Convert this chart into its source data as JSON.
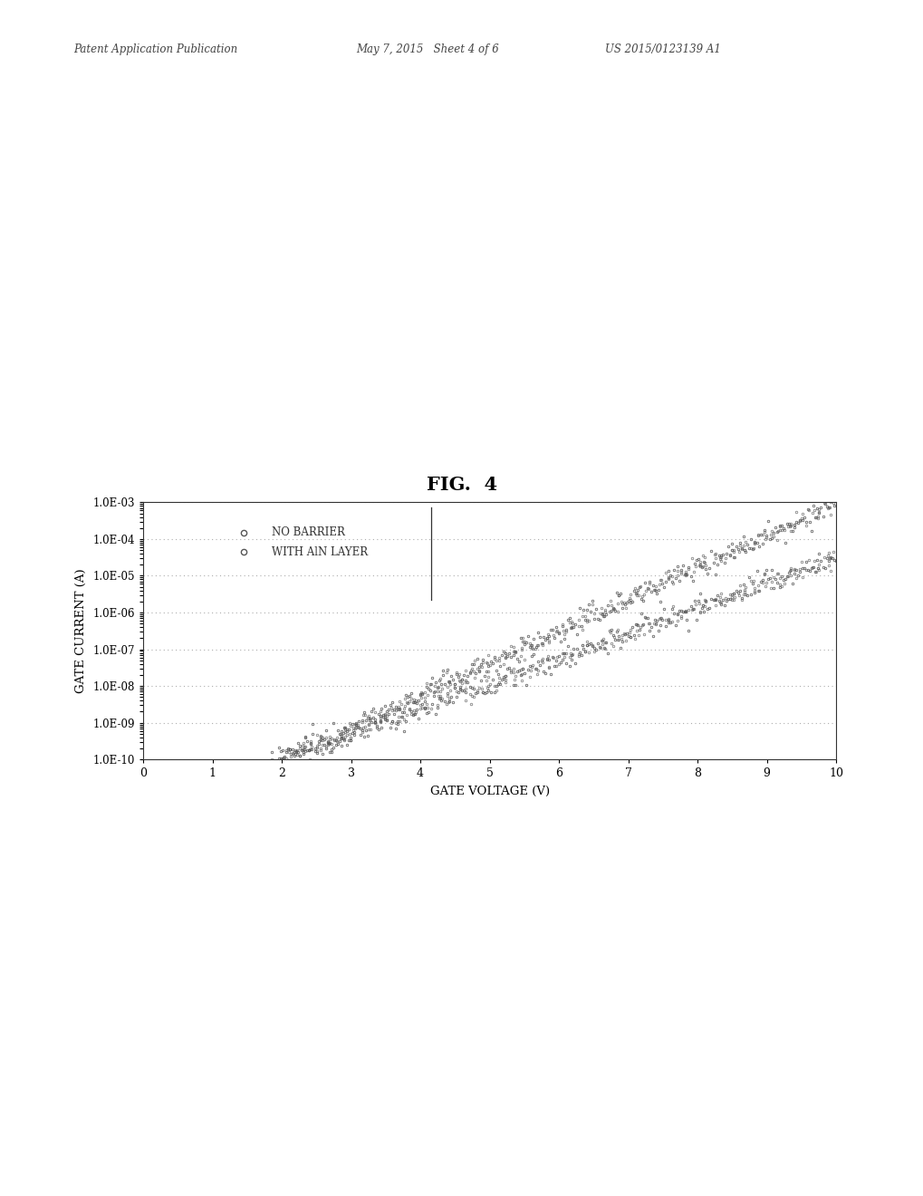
{
  "title": "FIG.  4",
  "xlabel": "GATE VOLTAGE (V)",
  "ylabel": "GATE CURRENT (A)",
  "header_left": "Patent Application Publication",
  "header_mid": "May 7, 2015   Sheet 4 of 6",
  "header_right": "US 2015/0123139 A1",
  "legend_labels": [
    "NO BARRIER",
    "WITH AlN LAYER"
  ],
  "xlim": [
    0,
    10
  ],
  "x_ticks": [
    0,
    1,
    2,
    3,
    4,
    5,
    6,
    7,
    8,
    9,
    10
  ],
  "y_tick_labels": [
    "1.0E-03",
    "1.0E-04",
    "1.0E-05",
    "1.0E-06",
    "1.0E-07",
    "1.0E-08",
    "1.0E-09",
    "1.0E-10"
  ],
  "y_tick_values": [
    0.001,
    0.0001,
    1e-05,
    1e-06,
    1e-07,
    1e-08,
    1e-09,
    1e-10
  ],
  "background_color": "#ffffff",
  "plot_bg_color": "#ffffff",
  "marker_color": "#555555",
  "grid_color": "#999999"
}
